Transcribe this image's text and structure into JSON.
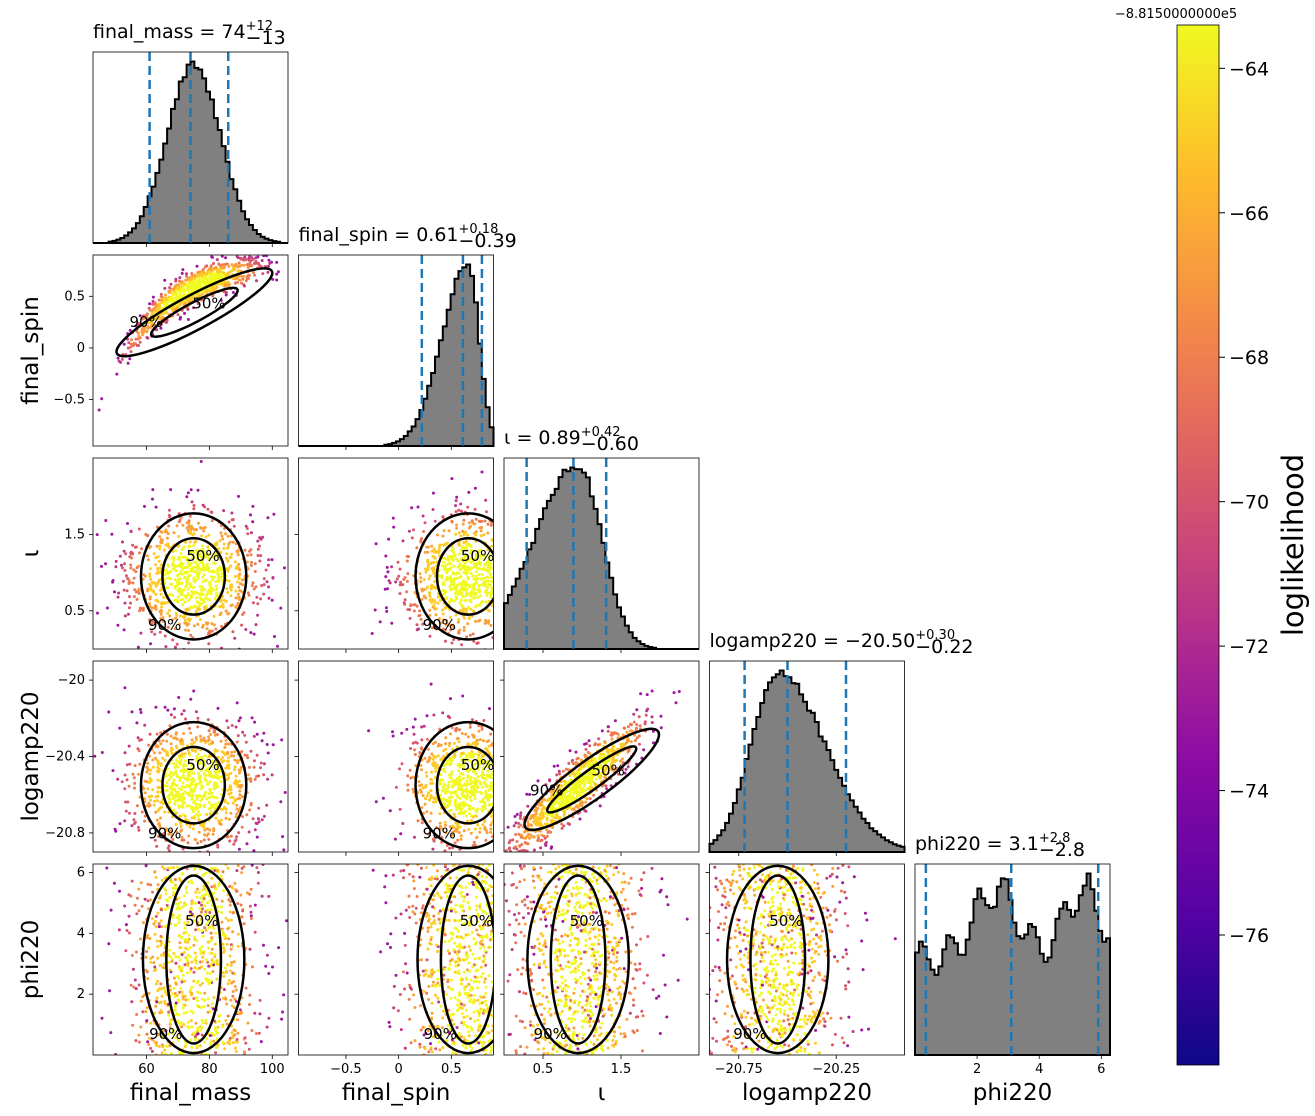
{
  "chart_data": {
    "type": "scatter",
    "subtype": "corner-plot",
    "parameters": [
      {
        "name": "final_mass",
        "label": "final_mass",
        "range": [
          43,
          105
        ],
        "ticks": [
          60,
          80,
          100
        ],
        "title_prefix": "final_mass = ",
        "median": "74",
        "err_plus": "+12",
        "err_minus": "−13",
        "quantiles": [
          61,
          74,
          86
        ],
        "hist_center": 75,
        "hist_width": 8.5,
        "hist_shape": "gauss"
      },
      {
        "name": "final_spin",
        "label": "final_spin",
        "range": [
          -0.95,
          0.9
        ],
        "ticks": [
          -0.5,
          0.0,
          0.5
        ],
        "title_prefix": "final_spin = ",
        "median": "0.61",
        "err_plus": "+0.18",
        "err_minus": "−0.39",
        "quantiles": [
          0.22,
          0.61,
          0.79
        ],
        "hist_center": 0.66,
        "hist_width": 0.14,
        "hist_shape": "skewleft"
      },
      {
        "name": "iota",
        "label": "ι",
        "range": [
          0.0,
          2.5
        ],
        "ticks": [
          0.5,
          1.5
        ],
        "title_prefix": "ι = ",
        "median": "0.89",
        "err_plus": "+0.42",
        "err_minus": "−0.60",
        "quantiles": [
          0.29,
          0.89,
          1.31
        ],
        "hist_center": 0.95,
        "hist_width": 0.35,
        "hist_shape": "skewleft2"
      },
      {
        "name": "logamp220",
        "label": "logamp220",
        "range": [
          -20.9,
          -19.9
        ],
        "ticks": [
          -20.75,
          -20.25
        ],
        "ytick_labels": [
          -20.0,
          -20.4,
          -20.8
        ],
        "title_prefix": "logamp220 = ",
        "median": "−20.50",
        "err_plus": "+0.30",
        "err_minus": "−0.22",
        "quantiles": [
          -20.72,
          -20.5,
          -20.2
        ],
        "hist_center": -20.55,
        "hist_width": 0.15,
        "hist_shape": "skewright"
      },
      {
        "name": "phi220",
        "label": "phi220",
        "range": [
          0,
          6.28
        ],
        "ticks": [
          2,
          4,
          6
        ],
        "title_prefix": "phi220 = ",
        "median": "3.1",
        "err_plus": "+2.8",
        "err_minus": "−2.8",
        "quantiles": [
          0.35,
          3.1,
          5.9
        ],
        "hist_center": 3.14,
        "hist_width": 3,
        "hist_shape": "bimodal"
      }
    ],
    "contour_levels": [
      "50%",
      "90%"
    ],
    "colorbar": {
      "label": "loglikelihood",
      "offset_text": "−8.8150000000e5",
      "ticks": [
        -64,
        -66,
        -68,
        -70,
        -72,
        -74,
        -76
      ],
      "range": [
        -77.8,
        -63.4
      ],
      "colormap": [
        "#0d0887",
        "#6a00a8",
        "#b12a90",
        "#e16462",
        "#fca636",
        "#f0f921"
      ]
    },
    "colors": {
      "hist_fill": "#808080",
      "hist_edge": "#000000",
      "quantile_line": "#1f77b4",
      "contour": "#000000"
    }
  }
}
